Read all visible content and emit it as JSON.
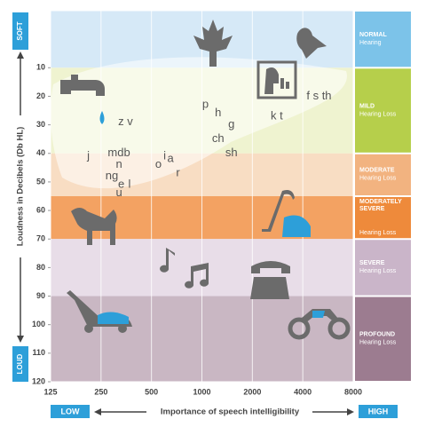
{
  "chart_data": {
    "type": "audiogram",
    "y_axis_label": "Loudness in Decibels (Db HL)",
    "y_top_label": "SOFT",
    "y_bottom_label": "LOUD",
    "x_axis_label": "Importance of speech intelligibility",
    "x_left_label": "LOW",
    "x_right_label": "HIGH",
    "xlim": [
      125,
      8000
    ],
    "xticks": [
      125,
      250,
      500,
      1000,
      2000,
      4000,
      8000
    ],
    "x_log_scale": true,
    "ylim": [
      -10,
      120
    ],
    "yticks": [
      10,
      20,
      30,
      40,
      50,
      60,
      70,
      80,
      90,
      100,
      110,
      120
    ],
    "grid": true,
    "bands": [
      {
        "title": "NORMAL",
        "subtitle": "Hearing",
        "from": -10,
        "to": 10,
        "color": "#d6e9f7",
        "label_color": "#7cc3e9"
      },
      {
        "title": "MILD",
        "subtitle": "Hearing Loss",
        "from": 10,
        "to": 40,
        "color": "#eff3d0",
        "label_color": "#b6cf4b"
      },
      {
        "title": "MODERATE",
        "subtitle": "Hearing Loss",
        "from": 40,
        "to": 55,
        "color": "#f8ddc3",
        "label_color": "#f2b380"
      },
      {
        "title": "MODERATELY SEVERE",
        "subtitle": "Hearing Loss",
        "from": 55,
        "to": 70,
        "color": "#f3a262",
        "label_color": "#ee8a3b"
      },
      {
        "title": "SEVERE",
        "subtitle": "Hearing Loss",
        "from": 70,
        "to": 90,
        "color": "#e8dde8",
        "label_color": "#cab5c9"
      },
      {
        "title": "PROFOUND",
        "subtitle": "Hearing Loss",
        "from": 90,
        "to": 120,
        "color": "#c9b7c3",
        "label_color": "#9c7c90"
      }
    ],
    "sounds": [
      {
        "text": "z v",
        "x": 350,
        "y": 29
      },
      {
        "text": "p",
        "x": 1050,
        "y": 23
      },
      {
        "text": "h",
        "x": 1250,
        "y": 26
      },
      {
        "text": "g",
        "x": 1500,
        "y": 30
      },
      {
        "text": "ch",
        "x": 1250,
        "y": 35
      },
      {
        "text": "sh",
        "x": 1500,
        "y": 40
      },
      {
        "text": "k t",
        "x": 2800,
        "y": 27
      },
      {
        "text": "f s th",
        "x": 5000,
        "y": 20
      },
      {
        "text": "j",
        "x": 210,
        "y": 41
      },
      {
        "text": "mdb",
        "x": 320,
        "y": 40
      },
      {
        "text": "n",
        "x": 320,
        "y": 44
      },
      {
        "text": "ng",
        "x": 290,
        "y": 48
      },
      {
        "text": "e",
        "x": 330,
        "y": 51
      },
      {
        "text": "l",
        "x": 370,
        "y": 51
      },
      {
        "text": "u",
        "x": 320,
        "y": 54
      },
      {
        "text": "o",
        "x": 550,
        "y": 44
      },
      {
        "text": "i",
        "x": 600,
        "y": 41
      },
      {
        "text": "a",
        "x": 650,
        "y": 42
      },
      {
        "text": "r",
        "x": 720,
        "y": 47
      }
    ],
    "sound_color": "#555555"
  }
}
